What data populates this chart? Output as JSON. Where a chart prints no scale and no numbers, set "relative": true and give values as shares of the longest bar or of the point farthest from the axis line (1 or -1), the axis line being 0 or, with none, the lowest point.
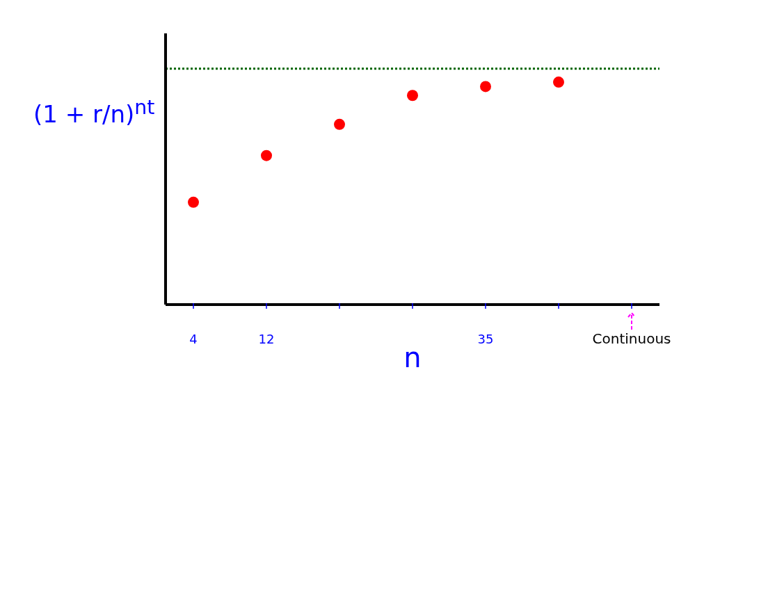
{
  "chart_data": {
    "type": "scatter",
    "relative": true,
    "xlabel": "n",
    "ylabel": "(1 + r/n)$^{nt}$",
    "categories": [
      "4",
      "12",
      null,
      null,
      "35",
      null,
      "Continuous"
    ],
    "series": [
      {
        "color": "#ff0000",
        "values": [
          0.46,
          0.67,
          0.81,
          0.94,
          0.98,
          1,
          null
        ]
      }
    ],
    "ref_lines": [
      {
        "axis": "y",
        "value": 1.06,
        "color": "#006400",
        "line_style": "dotted"
      }
    ],
    "marker": "circle",
    "grid": false,
    "legend": false
  }
}
